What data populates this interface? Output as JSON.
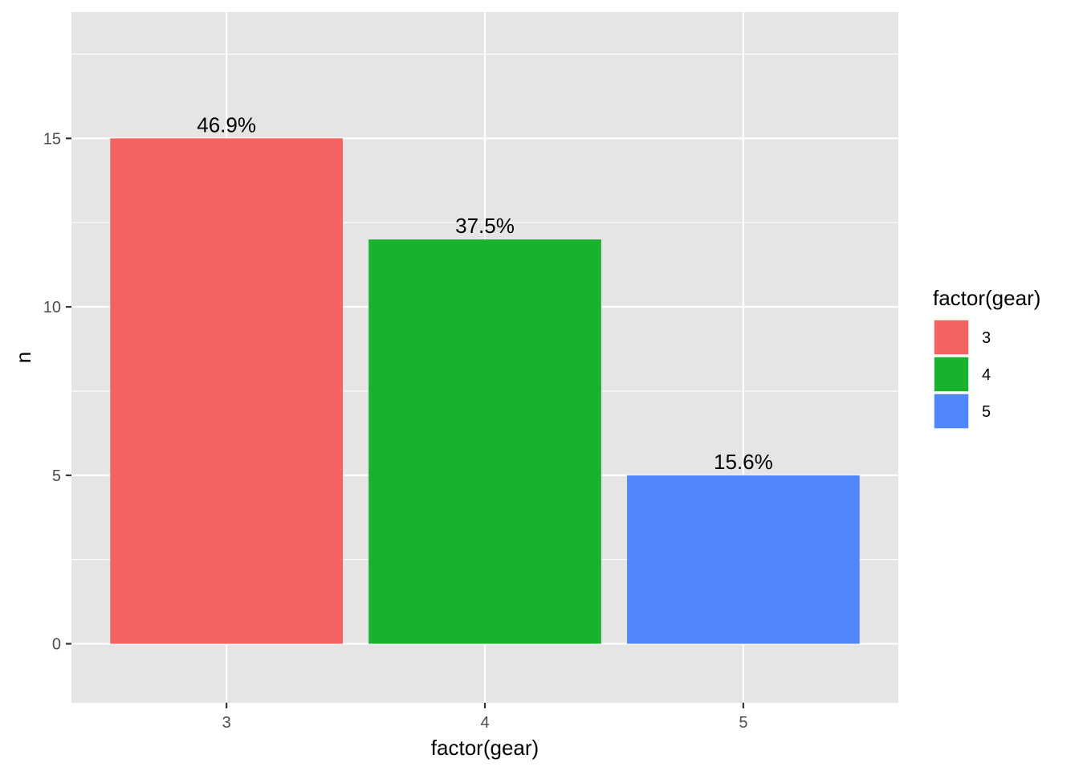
{
  "chart_data": {
    "type": "bar",
    "categories": [
      "3",
      "4",
      "5"
    ],
    "values": [
      15,
      12,
      5
    ],
    "data_labels": [
      "46.9%",
      "37.5%",
      "15.6%"
    ],
    "colors": [
      "#F46360",
      "#19B22F",
      "#5087FF"
    ],
    "xlabel": "factor(gear)",
    "ylabel": "n",
    "ylim": [
      -1.75,
      18.75
    ],
    "y_ticks": [
      0,
      5,
      10,
      15
    ],
    "y_minor_ticks": [
      2.5,
      7.5,
      12.5,
      17.5
    ],
    "y_tick_labels": [
      "0",
      "5",
      "10",
      "15"
    ],
    "grid": true,
    "panel_background": "#E5E5E5",
    "grid_color": "#FFFFFF",
    "legend": {
      "title": "factor(gear)",
      "items": [
        "3",
        "4",
        "5"
      ],
      "placement": "right"
    }
  }
}
